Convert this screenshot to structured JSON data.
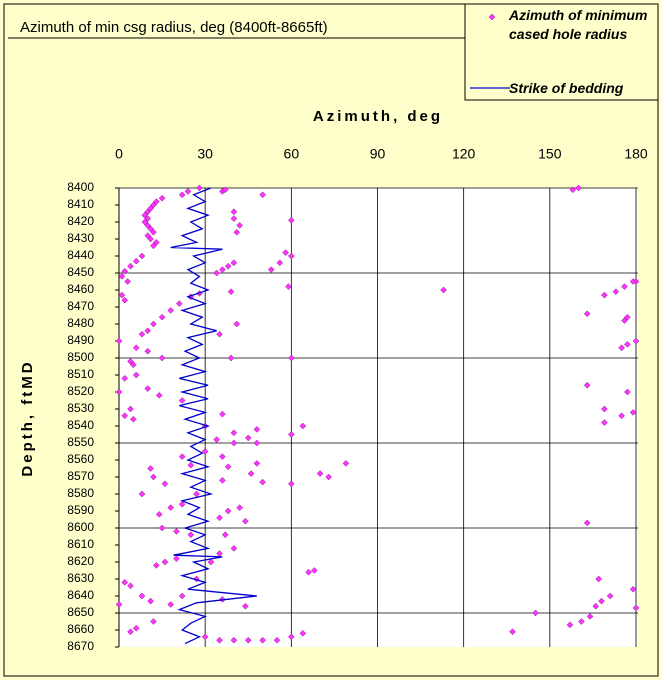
{
  "chart_data": {
    "type": "scatter",
    "title": "Azimuth of min csg radius, deg (8400ft-8665ft)",
    "xlabel": "Azimuth, deg",
    "ylabel": "Depth, ftMD",
    "xlim": [
      0,
      180
    ],
    "xticks": [
      0,
      30,
      60,
      90,
      120,
      150,
      180
    ],
    "ylim": [
      8400,
      8670
    ],
    "yticks": [
      8400,
      8410,
      8420,
      8430,
      8440,
      8450,
      8460,
      8470,
      8480,
      8490,
      8500,
      8510,
      8520,
      8530,
      8540,
      8550,
      8560,
      8570,
      8580,
      8590,
      8600,
      8610,
      8620,
      8630,
      8640,
      8650,
      8660,
      8670
    ],
    "y_reversed": true,
    "grid": true,
    "legend": "top-right",
    "series": [
      {
        "name": "Azimuth of minimum cased hole radius",
        "type": "scatter",
        "color": "#ff33ff",
        "x": [
          158,
          160,
          28,
          24,
          22,
          36,
          37,
          50,
          15,
          13,
          12,
          11,
          10,
          9,
          10,
          9,
          10,
          11,
          12,
          10,
          11,
          13,
          12,
          40,
          40,
          42,
          41,
          60,
          8,
          6,
          4,
          2,
          1,
          3,
          40,
          38,
          36,
          34,
          53,
          56,
          60,
          58,
          113,
          59,
          39,
          28,
          25,
          21,
          18,
          15,
          12,
          10,
          8,
          1,
          2,
          180,
          179,
          176,
          173,
          169,
          163,
          177,
          176,
          41,
          35,
          0,
          6,
          10,
          15,
          4,
          5,
          39,
          60,
          177,
          175,
          180,
          6,
          2,
          10,
          0,
          14,
          22,
          4,
          2,
          5,
          177,
          163,
          169,
          179,
          175,
          169,
          36,
          30,
          40,
          48,
          45,
          34,
          40,
          48,
          60,
          64,
          30,
          36,
          22,
          25,
          38,
          48,
          46,
          36,
          50,
          60,
          79,
          70,
          73,
          11,
          12,
          16,
          8,
          27,
          22,
          18,
          14,
          42,
          38,
          44,
          35,
          15,
          20,
          25,
          163,
          35,
          32,
          40,
          37,
          20,
          16,
          13,
          66,
          68,
          27,
          2,
          4,
          167,
          8,
          11,
          18,
          22,
          0,
          36,
          44,
          179,
          171,
          168,
          166,
          180,
          164,
          161,
          157,
          145,
          137,
          12,
          6,
          4,
          45,
          35,
          40,
          50,
          55,
          60,
          64,
          30
        ],
        "values": [
          8401,
          8400,
          8400,
          8402,
          8404,
          8402,
          8401,
          8404,
          8406,
          8408,
          8410,
          8412,
          8414,
          8416,
          8418,
          8420,
          8422,
          8424,
          8426,
          8428,
          8430,
          8432,
          8434,
          8414,
          8418,
          8422,
          8426,
          8419,
          8440,
          8443,
          8446,
          8449,
          8452,
          8455,
          8444,
          8446,
          8448,
          8450,
          8448,
          8444,
          8440,
          8438,
          8460,
          8458,
          8461,
          8462,
          8464,
          8468,
          8472,
          8476,
          8480,
          8484,
          8486,
          8463,
          8466,
          8455,
          8455,
          8458,
          8461,
          8463,
          8474,
          8476,
          8478,
          8480,
          8486,
          8490,
          8494,
          8496,
          8500,
          8502,
          8504,
          8500,
          8500,
          8492,
          8494,
          8490,
          8510,
          8512,
          8518,
          8520,
          8522,
          8525,
          8530,
          8534,
          8536,
          8520,
          8516,
          8530,
          8532,
          8534,
          8538,
          8533,
          8540,
          8544,
          8542,
          8547,
          8548,
          8550,
          8550,
          8545,
          8540,
          8555,
          8558,
          8558,
          8563,
          8564,
          8562,
          8568,
          8572,
          8573,
          8574,
          8562,
          8568,
          8570,
          8565,
          8570,
          8574,
          8580,
          8580,
          8586,
          8588,
          8592,
          8588,
          8590,
          8596,
          8594,
          8600,
          8602,
          8604,
          8597,
          8615,
          8620,
          8612,
          8604,
          8618,
          8620,
          8622,
          8626,
          8625,
          8630,
          8632,
          8634,
          8630,
          8640,
          8643,
          8645,
          8640,
          8645,
          8642,
          8646,
          8636,
          8640,
          8643,
          8646,
          8647,
          8652,
          8655,
          8657,
          8650,
          8661,
          8655,
          8659,
          8661,
          8666,
          8666,
          8666,
          8666,
          8666,
          8664,
          8662,
          8664
        ]
      },
      {
        "name": "Strike of bedding",
        "type": "line",
        "color": "#0000cc",
        "x": [
          32,
          26,
          30,
          24,
          31,
          25,
          29,
          22,
          27,
          18,
          36,
          26,
          30,
          24,
          28,
          25,
          31,
          24,
          30,
          22,
          29,
          25,
          34,
          24,
          29,
          23,
          28,
          22,
          30,
          21,
          31,
          22,
          31,
          21,
          30,
          23,
          31,
          24,
          30,
          25,
          29,
          24,
          31,
          22,
          30,
          25,
          32,
          22,
          28,
          24,
          31,
          23,
          30,
          25,
          31,
          19,
          36,
          26,
          31,
          22,
          30,
          24,
          48,
          27,
          21,
          30,
          25,
          22,
          28,
          23
        ],
        "values": [
          8400,
          8404,
          8408,
          8412,
          8416,
          8420,
          8424,
          8428,
          8432,
          8435,
          8436,
          8440,
          8444,
          8448,
          8452,
          8456,
          8460,
          8464,
          8468,
          8472,
          8476,
          8480,
          8484,
          8488,
          8492,
          8496,
          8500,
          8504,
          8508,
          8512,
          8516,
          8520,
          8524,
          8528,
          8532,
          8536,
          8540,
          8544,
          8548,
          8552,
          8556,
          8560,
          8564,
          8568,
          8572,
          8576,
          8580,
          8584,
          8588,
          8592,
          8596,
          8600,
          8604,
          8608,
          8612,
          8616,
          8617,
          8620,
          8624,
          8628,
          8632,
          8636,
          8640,
          8644,
          8648,
          8652,
          8656,
          8660,
          8664,
          8668
        ]
      }
    ]
  }
}
